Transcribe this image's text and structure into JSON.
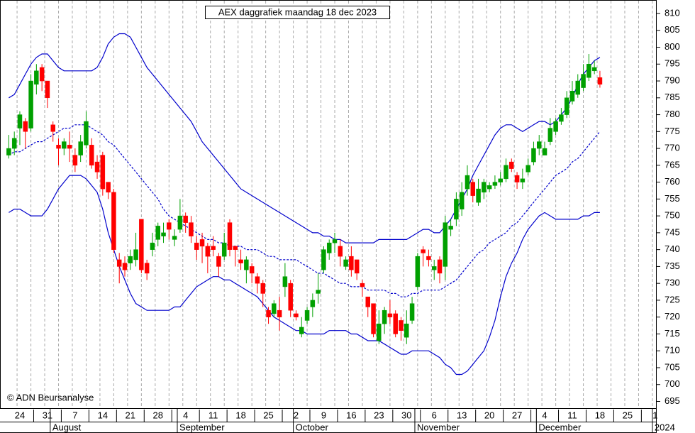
{
  "chart_data": {
    "type": "candlestick",
    "title": "AEX daggrafiek maandag 18 dec 2023",
    "copyright": "© ADN Beursanalyse",
    "categories": [
      null,
      null,
      "24",
      null,
      null,
      null,
      null,
      "31",
      null,
      null,
      null,
      null,
      "7",
      null,
      null,
      null,
      null,
      "14",
      null,
      null,
      null,
      null,
      "21",
      null,
      null,
      null,
      null,
      "28",
      null,
      null,
      null,
      null,
      "4",
      null,
      null,
      null,
      null,
      "11",
      null,
      null,
      null,
      null,
      "18",
      null,
      null,
      null,
      null,
      "25",
      null,
      null,
      null,
      null,
      "2",
      null,
      null,
      null,
      null,
      "9",
      null,
      null,
      null,
      null,
      "16",
      null,
      null,
      null,
      null,
      "23",
      null,
      null,
      null,
      null,
      "30",
      null,
      null,
      null,
      null,
      "6",
      null,
      null,
      null,
      null,
      "13",
      null,
      null,
      null,
      null,
      "20",
      null,
      null,
      null,
      null,
      "27",
      null,
      null,
      null,
      null,
      "4",
      null,
      null,
      null,
      null,
      "11",
      null,
      null,
      null,
      null,
      "18",
      null,
      null,
      null,
      null,
      "25",
      null,
      null,
      null,
      null,
      "1"
    ],
    "months": [
      null,
      null,
      null,
      null,
      null,
      null,
      null,
      null,
      "August",
      null,
      null,
      null,
      null,
      null,
      null,
      null,
      null,
      null,
      null,
      null,
      null,
      null,
      null,
      null,
      null,
      null,
      null,
      null,
      null,
      null,
      null,
      "September",
      null,
      null,
      null,
      null,
      null,
      null,
      null,
      null,
      null,
      null,
      null,
      null,
      null,
      null,
      null,
      null,
      null,
      null,
      null,
      null,
      "October",
      null,
      null,
      null,
      null,
      null,
      null,
      null,
      null,
      null,
      null,
      null,
      null,
      null,
      null,
      null,
      null,
      null,
      null,
      null,
      null,
      null,
      "November",
      null,
      null,
      null,
      null,
      null,
      null,
      null,
      null,
      null,
      null,
      null,
      null,
      null,
      null,
      null,
      null,
      null,
      null,
      null,
      null,
      null,
      "December",
      null,
      null,
      null,
      null,
      null,
      null,
      null,
      null,
      null,
      null,
      null,
      null,
      null,
      null,
      null,
      null,
      null,
      null,
      null,
      null,
      "2024"
    ],
    "up_color": "#00a000",
    "down_color": "#ff0000",
    "open": [
      768,
      770,
      776,
      778,
      776,
      789,
      794,
      790,
      777,
      771,
      770,
      771,
      768,
      768,
      771,
      771,
      766,
      768,
      760,
      757,
      737,
      736,
      736,
      737,
      749,
      736,
      740,
      743,
      744,
      748,
      743,
      746,
      750,
      748,
      742,
      743,
      741,
      741,
      738,
      738,
      748,
      741,
      737,
      734,
      735,
      732,
      730,
      722,
      721,
      722,
      729,
      730,
      721,
      715,
      719,
      723,
      727,
      734,
      739,
      742,
      741,
      735,
      738,
      737,
      730,
      726,
      724,
      713,
      718,
      721,
      721,
      719,
      714,
      719,
      729,
      740,
      738,
      734,
      737,
      735,
      746,
      749,
      752,
      758,
      760,
      754,
      757,
      758,
      759,
      760,
      761,
      766,
      762,
      760,
      763,
      766,
      770,
      768,
      772,
      775,
      778,
      780,
      784,
      786,
      788,
      791,
      793,
      791,
      null,
      null,
      null,
      null,
      null,
      null,
      null,
      null,
      null,
      null
    ],
    "high": [
      774,
      775,
      781,
      779,
      792,
      795,
      795,
      790,
      778,
      773,
      773,
      775,
      770,
      774,
      781,
      773,
      768,
      769,
      760,
      758,
      739,
      738,
      740,
      745,
      749,
      737,
      745,
      748,
      748,
      749,
      746,
      755,
      751,
      750,
      744,
      745,
      742,
      744,
      739,
      745,
      749,
      741,
      740,
      738,
      736,
      733,
      731,
      723,
      725,
      726,
      736,
      731,
      722,
      720,
      723,
      727,
      733,
      741,
      743,
      745,
      743,
      738,
      741,
      737,
      731,
      726,
      724,
      722,
      723,
      725,
      722,
      720,
      722,
      726,
      739,
      741,
      740,
      737,
      738,
      750,
      749,
      757,
      760,
      765,
      761,
      761,
      761,
      760,
      762,
      763,
      767,
      767,
      763,
      764,
      767,
      772,
      774,
      772,
      779,
      779,
      782,
      787,
      790,
      792,
      795,
      798,
      796,
      793,
      null,
      null,
      null,
      null,
      null,
      null,
      null,
      null,
      null,
      null
    ],
    "low": [
      767,
      768,
      771,
      770,
      775,
      786,
      787,
      782,
      772,
      765,
      768,
      766,
      763,
      766,
      770,
      764,
      761,
      756,
      755,
      739,
      730,
      732,
      734,
      735,
      733,
      731,
      738,
      741,
      742,
      743,
      741,
      745,
      745,
      742,
      737,
      736,
      733,
      738,
      732,
      737,
      738,
      735,
      734,
      730,
      730,
      727,
      723,
      718,
      720,
      716,
      726,
      720,
      719,
      714,
      718,
      720,
      724,
      733,
      737,
      739,
      735,
      734,
      732,
      731,
      726,
      720,
      714,
      712,
      715,
      718,
      714,
      713,
      712,
      718,
      728,
      735,
      735,
      731,
      730,
      731,
      744,
      747,
      750,
      756,
      754,
      753,
      755,
      757,
      758,
      759,
      760,
      763,
      758,
      758,
      762,
      765,
      768,
      768,
      771,
      774,
      777,
      779,
      783,
      785,
      787,
      790,
      792,
      788,
      null,
      null,
      null,
      null,
      null,
      null,
      null,
      null,
      null,
      null
    ],
    "close": [
      770,
      773,
      780,
      775,
      790,
      793,
      790,
      785,
      775,
      770,
      772,
      770,
      765,
      772,
      778,
      765,
      763,
      758,
      757,
      740,
      735,
      734,
      738,
      740,
      734,
      733,
      742,
      747,
      745,
      746,
      744,
      750,
      748,
      744,
      740,
      741,
      738,
      740,
      735,
      742,
      740,
      740,
      736,
      737,
      733,
      730,
      727,
      720,
      724,
      720,
      732,
      722,
      720,
      717,
      722,
      725,
      728,
      740,
      742,
      743,
      738,
      737,
      734,
      733,
      729,
      723,
      715,
      718,
      722,
      720,
      715,
      716,
      718,
      724,
      738,
      739,
      737,
      735,
      733,
      748,
      747,
      755,
      757,
      762,
      756,
      758,
      760,
      759,
      760,
      761,
      765,
      764,
      760,
      761,
      765,
      770,
      772,
      770,
      776,
      778,
      780,
      785,
      787,
      790,
      792,
      795,
      794,
      789,
      null,
      null,
      null,
      null,
      null,
      null,
      null,
      null,
      null,
      null
    ],
    "bands": [
      {
        "color": "#0000cc",
        "dashed": false,
        "values": [
          785,
          786,
          789,
          792,
          795,
          797,
          798,
          798,
          796,
          794,
          793,
          793,
          793,
          793,
          793,
          793,
          794,
          797,
          801,
          803,
          804,
          804,
          803,
          800,
          797,
          794,
          792,
          790,
          788,
          786,
          784,
          782,
          780,
          778,
          775,
          772,
          770,
          768,
          766,
          764,
          762,
          760,
          758,
          757,
          756,
          755,
          754,
          753,
          752,
          751,
          750,
          749,
          748,
          747,
          746,
          745,
          745,
          744,
          744,
          743,
          743,
          742,
          742,
          742,
          742,
          742,
          742,
          743,
          743,
          743,
          743,
          743,
          743,
          744,
          745,
          746,
          746,
          745,
          745,
          747,
          749,
          752,
          755,
          758,
          762,
          765,
          768,
          771,
          774,
          776,
          777,
          777,
          776,
          775,
          776,
          777,
          778,
          778,
          777,
          778,
          780,
          782,
          785,
          789,
          792,
          794,
          796,
          797,
          null,
          null,
          null,
          null,
          null,
          null,
          null,
          null,
          null,
          null
        ]
      },
      {
        "color": "#0000cc",
        "dashed": true,
        "values": [
          768,
          769,
          769,
          770,
          771,
          772,
          772,
          773,
          774,
          775,
          776,
          776,
          777,
          777,
          777,
          776,
          775,
          774,
          772,
          771,
          769,
          767,
          765,
          763,
          761,
          759,
          757,
          755,
          752,
          750,
          749,
          748,
          747,
          746,
          745,
          744,
          743,
          743,
          742,
          742,
          741,
          741,
          741,
          740,
          740,
          740,
          739,
          738,
          738,
          737,
          737,
          737,
          737,
          736,
          735,
          734,
          733,
          733,
          732,
          731,
          730,
          730,
          729,
          729,
          729,
          728,
          728,
          728,
          728,
          727,
          727,
          726,
          726,
          727,
          727,
          728,
          728,
          728,
          728,
          729,
          730,
          731,
          733,
          735,
          737,
          739,
          740,
          742,
          743,
          744,
          745,
          747,
          748,
          750,
          752,
          754,
          756,
          758,
          760,
          762,
          763,
          764,
          766,
          767,
          769,
          771,
          773,
          775,
          null,
          null,
          null,
          null,
          null,
          null,
          null,
          null,
          null,
          null
        ]
      },
      {
        "color": "#0000cc",
        "dashed": false,
        "values": [
          751,
          752,
          752,
          751,
          750,
          750,
          750,
          752,
          755,
          758,
          760,
          762,
          762,
          762,
          761,
          759,
          757,
          752,
          745,
          740,
          735,
          731,
          727,
          724,
          723,
          722,
          722,
          722,
          722,
          722,
          723,
          723,
          725,
          727,
          729,
          730,
          731,
          732,
          732,
          731,
          731,
          730,
          729,
          728,
          727,
          726,
          724,
          722,
          720,
          719,
          718,
          717,
          716,
          716,
          715,
          715,
          715,
          715,
          716,
          716,
          716,
          716,
          715,
          715,
          714,
          713,
          713,
          713,
          712,
          711,
          710,
          709,
          709,
          710,
          710,
          710,
          710,
          709,
          708,
          706,
          705,
          703,
          703,
          704,
          706,
          708,
          710,
          714,
          719,
          726,
          732,
          736,
          739,
          743,
          746,
          748,
          750,
          751,
          750,
          749,
          749,
          749,
          749,
          749,
          750,
          750,
          751,
          751,
          null,
          null,
          null,
          null,
          null,
          null,
          null,
          null,
          null,
          null
        ]
      }
    ],
    "ylim": [
      693,
      814
    ],
    "yticks": [
      695,
      700,
      705,
      710,
      715,
      720,
      725,
      730,
      735,
      740,
      745,
      750,
      755,
      760,
      765,
      770,
      775,
      780,
      785,
      790,
      795,
      800,
      805,
      810
    ],
    "grid": true
  }
}
